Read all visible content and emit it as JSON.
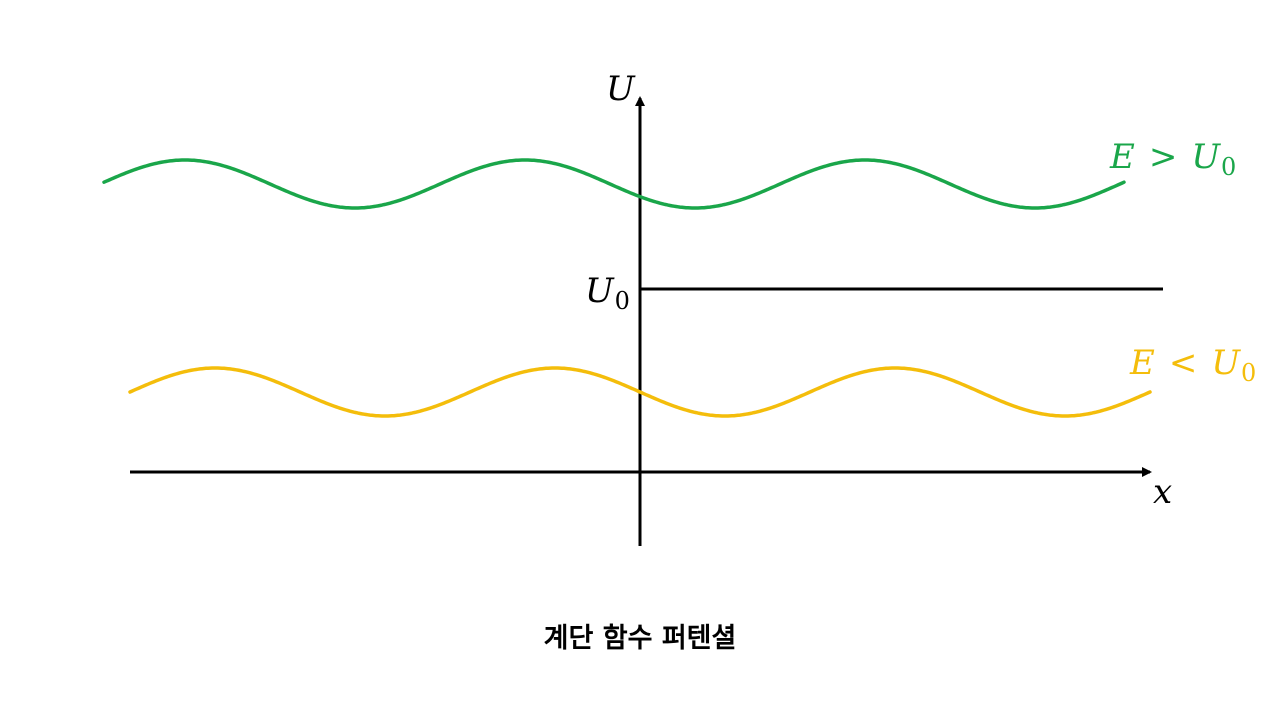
{
  "diagram": {
    "y_axis_label": "U",
    "x_axis_label": "x",
    "step": {
      "label_main": "U",
      "label_sub": "0"
    },
    "waves": [
      {
        "name": "E > U0",
        "label_left": "E",
        "label_op": ">",
        "label_var": "U",
        "label_sub": "0",
        "color": "#1aa64a"
      },
      {
        "name": "E < U0",
        "label_left": "E",
        "label_op": "<",
        "label_var": "U",
        "label_sub": "0",
        "color": "#f4bd0b"
      }
    ],
    "axis_color": "#000000"
  },
  "caption": "계단 함수 퍼텐셜"
}
